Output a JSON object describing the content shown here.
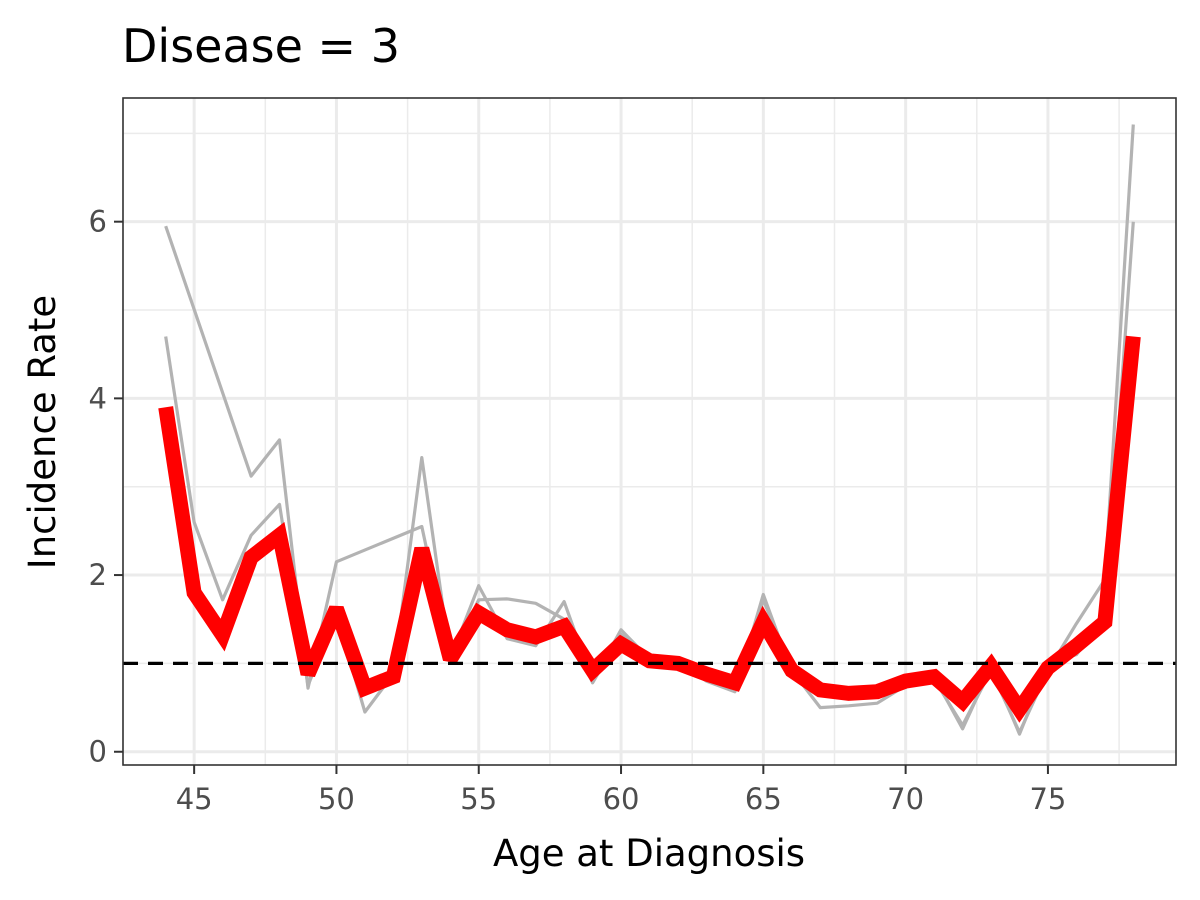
{
  "chart_data": {
    "type": "line",
    "title": "Disease = 3",
    "xlabel": "Age at Diagnosis",
    "ylabel": "Incidence Rate",
    "xlim": [
      42.5,
      79.5
    ],
    "ylim": [
      -0.15,
      7.4
    ],
    "x_ticks": [
      45,
      50,
      55,
      60,
      65,
      70,
      75
    ],
    "y_ticks": [
      0,
      2,
      4,
      6
    ],
    "grid": true,
    "legend": "none",
    "reference_line": {
      "y": 1,
      "style": "dashed",
      "color": "#000000"
    },
    "series": [
      {
        "color": "#b3b3b3",
        "role": "background",
        "points": [
          [
            44,
            5.95
          ],
          [
            47,
            3.12
          ],
          [
            48,
            3.53
          ],
          [
            49,
            0.72
          ],
          [
            50,
            2.15
          ],
          [
            53,
            2.55
          ],
          [
            54,
            1.05
          ],
          [
            55,
            1.72
          ],
          [
            56,
            1.73
          ],
          [
            57,
            1.68
          ],
          [
            58,
            1.5
          ],
          [
            59,
            0.78
          ],
          [
            60,
            1.33
          ],
          [
            61,
            1.05
          ],
          [
            62,
            1.0
          ],
          [
            63,
            0.85
          ],
          [
            64,
            0.7
          ],
          [
            65,
            1.72
          ],
          [
            66,
            0.92
          ],
          [
            67,
            0.5
          ],
          [
            68,
            0.52
          ],
          [
            69,
            0.55
          ],
          [
            70,
            0.75
          ],
          [
            71,
            0.82
          ],
          [
            72,
            0.3
          ],
          [
            73,
            0.92
          ],
          [
            74,
            0.22
          ],
          [
            75,
            0.92
          ],
          [
            76,
            1.45
          ],
          [
            77,
            1.95
          ],
          [
            78,
            7.1
          ]
        ]
      },
      {
        "color": "#b3b3b3",
        "role": "background",
        "points": [
          [
            44,
            4.7
          ],
          [
            45,
            2.6
          ],
          [
            46,
            1.72
          ],
          [
            47,
            2.45
          ],
          [
            48,
            2.8
          ],
          [
            49,
            0.75
          ],
          [
            50,
            1.55
          ],
          [
            51,
            0.45
          ],
          [
            52,
            0.88
          ],
          [
            53,
            3.33
          ],
          [
            54,
            1.05
          ],
          [
            55,
            1.88
          ],
          [
            56,
            1.28
          ],
          [
            57,
            1.2
          ],
          [
            58,
            1.7
          ],
          [
            59,
            0.8
          ],
          [
            60,
            1.38
          ],
          [
            61,
            1.05
          ],
          [
            62,
            1.02
          ],
          [
            63,
            0.8
          ],
          [
            64,
            0.68
          ],
          [
            65,
            1.78
          ],
          [
            66,
            0.9
          ],
          [
            67,
            0.72
          ],
          [
            68,
            0.62
          ],
          [
            69,
            0.66
          ],
          [
            70,
            0.78
          ],
          [
            71,
            0.85
          ],
          [
            72,
            0.26
          ],
          [
            73,
            0.96
          ],
          [
            74,
            0.2
          ],
          [
            75,
            1.0
          ],
          [
            76,
            1.1
          ],
          [
            77,
            1.5
          ],
          [
            78,
            6.0
          ]
        ]
      },
      {
        "color": "#ff0000",
        "role": "highlight",
        "points": [
          [
            44,
            3.9
          ],
          [
            45,
            1.8
          ],
          [
            46,
            1.32
          ],
          [
            47,
            2.2
          ],
          [
            48,
            2.45
          ],
          [
            49,
            0.88
          ],
          [
            50,
            1.62
          ],
          [
            51,
            0.72
          ],
          [
            52,
            0.85
          ],
          [
            53,
            2.3
          ],
          [
            54,
            1.05
          ],
          [
            55,
            1.57
          ],
          [
            56,
            1.38
          ],
          [
            57,
            1.3
          ],
          [
            58,
            1.42
          ],
          [
            59,
            0.92
          ],
          [
            60,
            1.22
          ],
          [
            61,
            1.03
          ],
          [
            62,
            1.0
          ],
          [
            63,
            0.88
          ],
          [
            64,
            0.78
          ],
          [
            65,
            1.47
          ],
          [
            66,
            0.92
          ],
          [
            67,
            0.7
          ],
          [
            68,
            0.66
          ],
          [
            69,
            0.68
          ],
          [
            70,
            0.8
          ],
          [
            71,
            0.85
          ],
          [
            72,
            0.57
          ],
          [
            73,
            0.97
          ],
          [
            74,
            0.48
          ],
          [
            75,
            0.95
          ],
          [
            76,
            1.2
          ],
          [
            77,
            1.47
          ],
          [
            78,
            4.7
          ]
        ]
      }
    ]
  }
}
